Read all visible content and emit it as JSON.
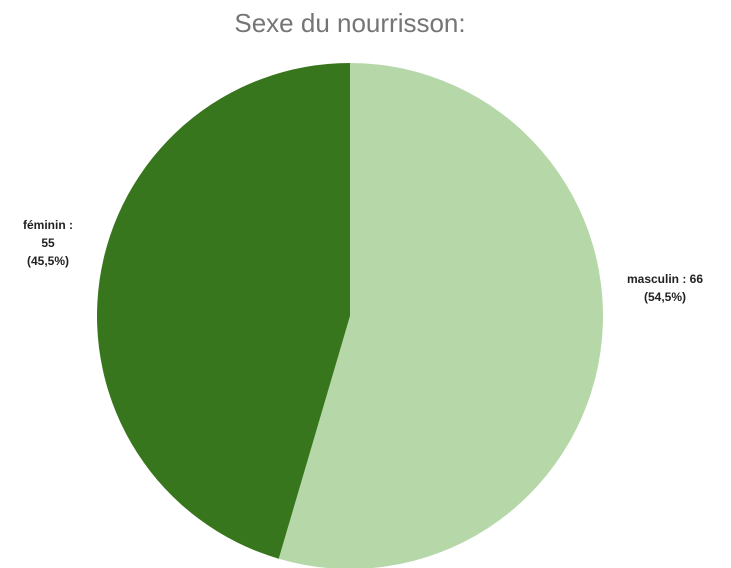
{
  "chart_data": {
    "type": "pie",
    "title": "Sexe du nourrisson:",
    "categories": [
      "masculin",
      "féminin"
    ],
    "values": [
      66,
      55
    ],
    "colors": [
      "#b6d7a8",
      "#38761d"
    ],
    "labels": [
      [
        "masculin : 66",
        "(54,5%)"
      ],
      [
        "féminin :",
        "55",
        "(45,5%)"
      ]
    ]
  }
}
